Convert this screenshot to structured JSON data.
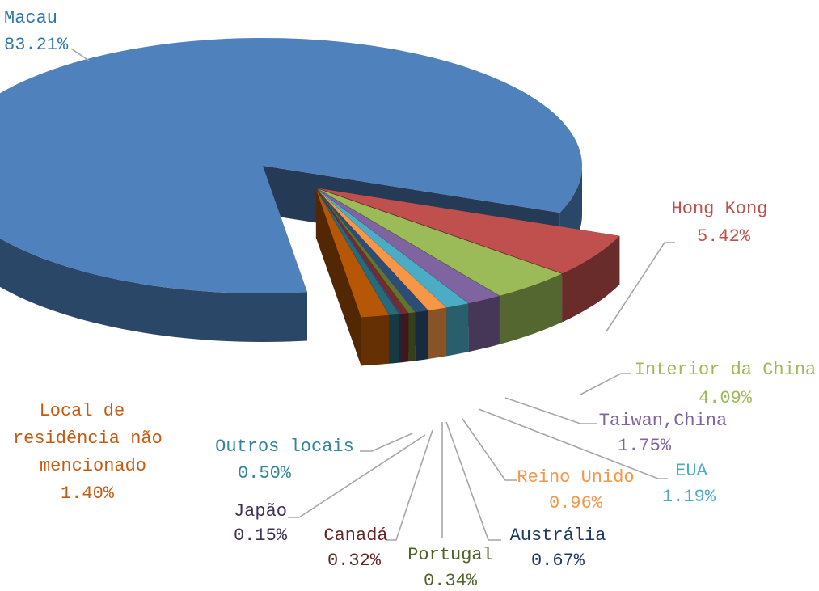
{
  "chart_data": {
    "type": "pie",
    "categories": [
      "Macau",
      "Hong Kong",
      "Interior da China",
      "Taiwan,China",
      "EUA",
      "Reino Unido",
      "Austrália",
      "Portugal",
      "Canadá",
      "Japão",
      "Outros locais",
      "Local de residência não mencionado"
    ],
    "values": [
      83.21,
      5.42,
      4.09,
      1.75,
      1.19,
      0.96,
      0.67,
      0.34,
      0.32,
      0.15,
      0.5,
      1.4
    ],
    "value_labels": [
      "83.21%",
      "5.42%",
      "4.09%",
      "1.75%",
      "1.19%",
      "0.96%",
      "0.67%",
      "0.34%",
      "0.32%",
      "0.15%",
      "0.50%",
      "1.40%"
    ],
    "colors": [
      "#4f81bd",
      "#c0504d",
      "#9bbb59",
      "#8064a2",
      "#4bacc6",
      "#f79646",
      "#2c4d75",
      "#5f7530",
      "#772c2a",
      "#4d3b62",
      "#276a7c",
      "#b65708"
    ]
  }
}
